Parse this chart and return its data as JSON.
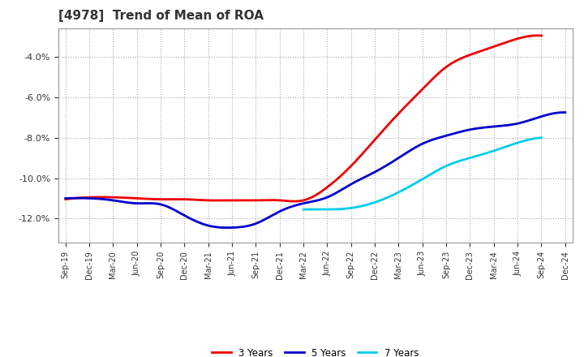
{
  "title": "[4978]  Trend of Mean of ROA",
  "background_color": "#ffffff",
  "plot_bg_color": "#ffffff",
  "grid_color": "#aaaaaa",
  "title_fontsize": 11,
  "title_color": "#333333",
  "x_labels": [
    "Sep-19",
    "Dec-19",
    "Mar-20",
    "Jun-20",
    "Sep-20",
    "Dec-20",
    "Mar-21",
    "Jun-21",
    "Sep-21",
    "Dec-21",
    "Mar-22",
    "Jun-22",
    "Sep-22",
    "Dec-22",
    "Mar-23",
    "Jun-23",
    "Sep-23",
    "Dec-23",
    "Mar-24",
    "Jun-24",
    "Sep-24",
    "Dec-24"
  ],
  "ylim": [
    -0.132,
    -0.026
  ],
  "yticks": [
    -0.12,
    -0.1,
    -0.08,
    -0.06,
    -0.04
  ],
  "series": {
    "3 Years": {
      "color": "#ee0000",
      "values": [
        -0.1105,
        -0.1095,
        -0.1095,
        -0.11,
        -0.1105,
        -0.1105,
        -0.111,
        -0.111,
        -0.111,
        -0.111,
        -0.111,
        -0.1045,
        -0.094,
        -0.081,
        -0.068,
        -0.056,
        -0.045,
        -0.039,
        -0.035,
        -0.031,
        -0.0295,
        null
      ]
    },
    "5 Years": {
      "color": "#0000cc",
      "values": [
        -0.11,
        -0.11,
        -0.111,
        -0.1125,
        -0.113,
        -0.1185,
        -0.1235,
        -0.1245,
        -0.1225,
        -0.1165,
        -0.1125,
        -0.1095,
        -0.103,
        -0.097,
        -0.09,
        -0.083,
        -0.079,
        -0.076,
        -0.0745,
        -0.073,
        -0.0695,
        -0.0675
      ]
    },
    "7 Years": {
      "color": "#00ccee",
      "values": [
        null,
        null,
        null,
        null,
        null,
        null,
        null,
        null,
        null,
        null,
        -0.1155,
        -0.1155,
        -0.1148,
        -0.112,
        -0.107,
        -0.1005,
        -0.094,
        -0.09,
        -0.0865,
        -0.0825,
        -0.08,
        null
      ]
    },
    "10 Years": {
      "color": "#008800",
      "values": [
        null,
        null,
        null,
        null,
        null,
        null,
        null,
        null,
        null,
        null,
        null,
        null,
        null,
        null,
        null,
        null,
        null,
        null,
        null,
        null,
        null,
        null
      ]
    }
  }
}
